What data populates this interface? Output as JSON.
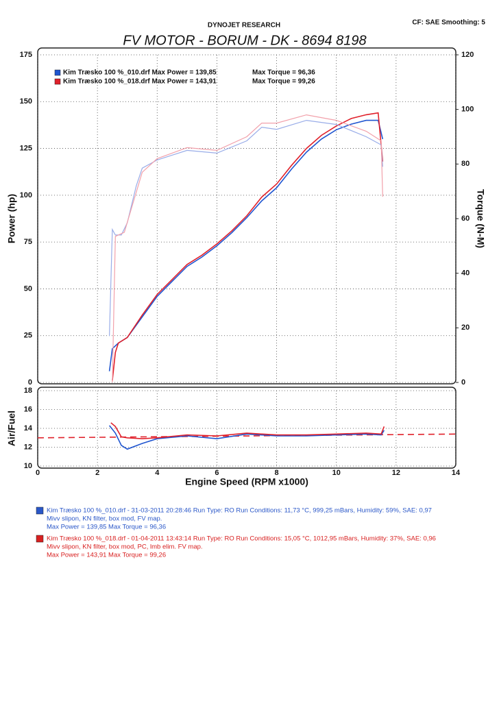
{
  "header": {
    "brand": "DYNOJET RESEARCH",
    "settings": "CF: SAE  Smoothing: 5",
    "title": "FV MOTOR - BORUM - DK - 8694 8198"
  },
  "chart_data": [
    {
      "type": "line",
      "ylabel": "Power (hp)",
      "y2label": "Torque (N-M)",
      "xlim": [
        0,
        14
      ],
      "ylim": [
        0,
        175
      ],
      "yticks": [
        0,
        25,
        50,
        75,
        100,
        125,
        150,
        175
      ],
      "y2lim": [
        0,
        120
      ],
      "y2ticks": [
        0,
        20,
        40,
        60,
        80,
        100,
        120
      ],
      "grid": true,
      "series": [
        {
          "name": "Kim Træsko 100 %_010.drf Max Power = 139,85",
          "max_torque_label": "Max Torque = 96,36",
          "color": "#1f55d0",
          "x": [
            2.4,
            2.5,
            2.7,
            3.0,
            3.5,
            4.0,
            4.5,
            5.0,
            5.5,
            6.0,
            6.5,
            7.0,
            7.5,
            8.0,
            8.5,
            9.0,
            9.5,
            10.0,
            10.5,
            11.0,
            11.4,
            11.55
          ],
          "values": [
            6,
            18,
            21,
            24,
            35,
            46,
            54,
            62,
            67,
            73,
            80,
            88,
            97,
            104,
            114,
            123,
            130,
            135,
            138,
            140,
            140,
            130
          ]
        },
        {
          "name": "Kim Træsko 100 %_018.drf Max Power = 143,91",
          "max_torque_label": "Max Torque = 99,26",
          "color": "#e0202a",
          "x": [
            2.5,
            2.6,
            2.7,
            3.0,
            3.5,
            4.0,
            4.5,
            5.0,
            5.5,
            6.0,
            6.5,
            7.0,
            7.5,
            8.0,
            8.5,
            9.0,
            9.5,
            10.0,
            10.5,
            11.0,
            11.4,
            11.55
          ],
          "values": [
            1,
            16,
            21,
            24,
            36,
            47,
            55,
            63,
            68,
            74,
            81,
            89,
            99,
            106,
            116,
            125,
            132,
            137,
            141,
            143,
            144,
            118
          ]
        },
        {
          "axis": "y2",
          "color": "#98ace8",
          "x": [
            2.4,
            2.5,
            2.6,
            2.8,
            3.0,
            3.3,
            3.5,
            4.0,
            5.0,
            6.0,
            7.0,
            7.5,
            8.0,
            9.0,
            10.0,
            11.0,
            11.5,
            11.55
          ],
          "values": [
            17,
            56,
            54,
            54,
            58.5,
            72,
            78.5,
            81.5,
            85,
            84,
            88.5,
            93.5,
            92.7,
            96,
            94.5,
            90,
            87,
            79
          ]
        },
        {
          "axis": "y2",
          "color": "#f2a0aa",
          "x": [
            2.5,
            2.6,
            2.9,
            3.2,
            3.5,
            4.0,
            5.0,
            6.0,
            7.0,
            7.5,
            8.0,
            9.0,
            9.5,
            10.0,
            11.0,
            11.5,
            11.55
          ],
          "values": [
            0,
            53.5,
            55,
            66,
            77,
            82,
            86,
            85,
            90,
            95,
            95,
            98,
            97,
            96,
            92,
            88.5,
            68
          ]
        }
      ]
    },
    {
      "type": "line",
      "xlabel": "Engine Speed (RPM x1000)",
      "ylabel": "Air/Fuel",
      "xlim": [
        0,
        14
      ],
      "xticks": [
        0,
        2,
        4,
        6,
        8,
        10,
        12,
        14
      ],
      "ylim": [
        10,
        18
      ],
      "yticks": [
        10,
        12,
        14,
        16,
        18
      ],
      "grid": true,
      "series": [
        {
          "color": "#1f55d0",
          "x": [
            2.4,
            2.6,
            2.8,
            3.0,
            3.5,
            4.0,
            5.0,
            6.0,
            7.0,
            8.0,
            9.0,
            10.0,
            11.0,
            11.5,
            11.6
          ],
          "values": [
            14.3,
            13.5,
            12.2,
            11.8,
            12.4,
            12.9,
            13.2,
            12.9,
            13.4,
            13.2,
            13.2,
            13.3,
            13.4,
            13.3,
            13.8
          ]
        },
        {
          "color": "#e0202a",
          "x": [
            2.45,
            2.6,
            2.8,
            3.0,
            3.5,
            4.0,
            5.0,
            6.0,
            7.0,
            8.0,
            9.0,
            10.0,
            11.0,
            11.5,
            11.6
          ],
          "values": [
            14.6,
            14.2,
            13.1,
            13.0,
            12.9,
            13.0,
            13.3,
            13.2,
            13.5,
            13.3,
            13.3,
            13.4,
            13.5,
            13.4,
            14.2
          ]
        }
      ],
      "target_line": {
        "x": [
          0,
          14
        ],
        "values": [
          13.0,
          13.4
        ],
        "color": "#e0202a"
      }
    }
  ],
  "notes": [
    {
      "color": "#2a57c8",
      "lines": [
        "Kim Træsko 100 %_010.drf - 31-03-2011 20:28:46  Run Type: RO  Run Conditions: 11,73 °C, 999,25 mBars,  Humidity:  59%, SAE: 0,97",
        "Mivv slipon, KN filter, box mod, FV map.",
        "Max Power = 139,85  Max Torque = 96,36"
      ]
    },
    {
      "color": "#d82020",
      "lines": [
        "Kim Træsko 100 %_018.drf - 01-04-2011 13:43:14  Run Type: RO  Run Conditions: 15,05 °C, 1012,95 mBars,  Humidity:  37%, SAE: 0,96",
        "Mivv slipon, KN filter, box mod, PC, lmb elim. FV map.",
        "Max Power = 143,91  Max Torque = 99,26"
      ]
    }
  ]
}
